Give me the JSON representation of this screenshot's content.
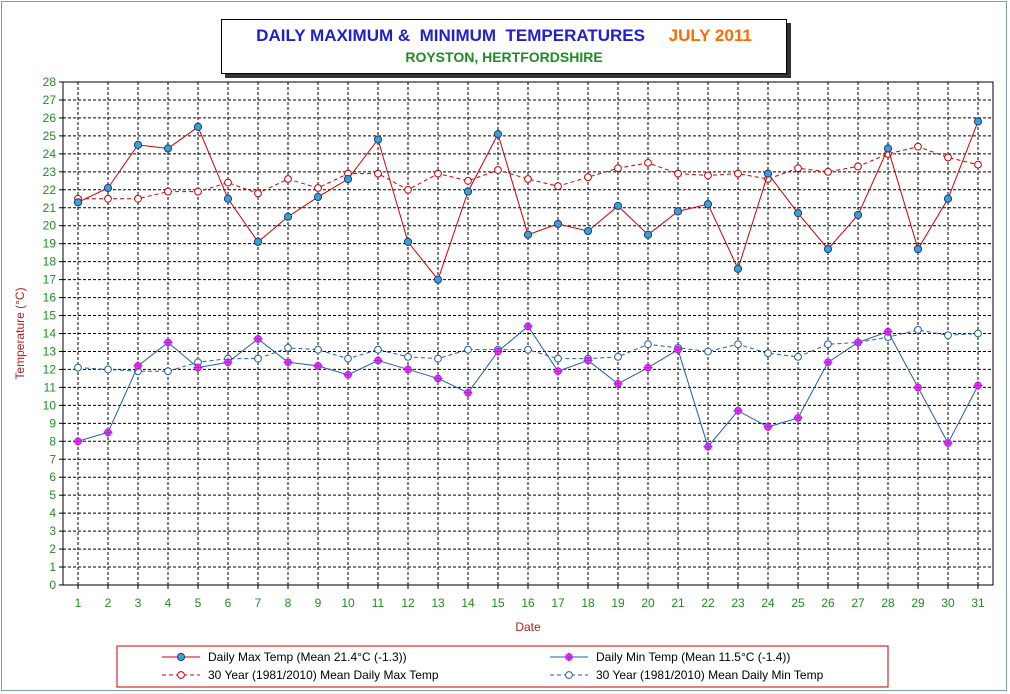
{
  "chart_data": {
    "type": "line",
    "title": "DAILY MAXIMUM &  MINIMUM  TEMPERATURES",
    "title_month": "JULY 2011",
    "subtitle": "ROYSTON, HERTFORDSHIRE",
    "xlabel": "Date",
    "ylabel": "Temperature (°C)",
    "ylim": [
      0,
      28
    ],
    "xlim": [
      0.5,
      31.5
    ],
    "grid": true,
    "x": [
      1,
      2,
      3,
      4,
      5,
      6,
      7,
      8,
      9,
      10,
      11,
      12,
      13,
      14,
      15,
      16,
      17,
      18,
      19,
      20,
      21,
      22,
      23,
      24,
      25,
      26,
      27,
      28,
      29,
      30,
      31
    ],
    "series": [
      {
        "name": "Daily Max Temp (Mean 21.4°C (-1.3))",
        "color": "#cc0000",
        "style": "solid",
        "marker": "filled-dot",
        "values": [
          21.3,
          22.1,
          24.5,
          24.3,
          25.5,
          21.5,
          19.1,
          20.5,
          21.6,
          22.6,
          24.8,
          19.1,
          17.0,
          21.9,
          25.1,
          19.5,
          20.1,
          19.7,
          21.1,
          19.5,
          20.8,
          21.2,
          17.6,
          22.9,
          20.7,
          18.7,
          20.6,
          24.3,
          18.7,
          21.5,
          25.8
        ]
      },
      {
        "name": "Daily Min Temp (Mean 11.5°C (-1.4))",
        "color": "#1f5fa8",
        "style": "solid",
        "marker": "magenta-star",
        "values": [
          8.0,
          8.5,
          12.2,
          13.5,
          12.1,
          12.4,
          13.7,
          12.4,
          12.2,
          11.7,
          12.5,
          12.0,
          11.5,
          10.7,
          13.0,
          14.4,
          11.9,
          12.5,
          11.2,
          12.1,
          13.1,
          7.7,
          9.7,
          8.8,
          9.3,
          12.4,
          13.5,
          14.1,
          11.0,
          7.9,
          11.1
        ]
      },
      {
        "name": "30 Year (1981/2010) Mean Daily Max Temp",
        "color": "#cc0000",
        "style": "dashed",
        "marker": "open-circle",
        "values": [
          21.5,
          21.5,
          21.5,
          21.9,
          21.9,
          22.4,
          21.8,
          22.6,
          22.1,
          22.9,
          22.9,
          22.0,
          22.9,
          22.5,
          23.1,
          22.6,
          22.2,
          22.7,
          23.2,
          23.5,
          22.9,
          22.8,
          22.9,
          22.6,
          23.2,
          23.0,
          23.3,
          24.0,
          24.4,
          23.8,
          23.4
        ]
      },
      {
        "name": "30 Year (1981/2010) Mean Daily Min Temp",
        "color": "#1f5fa8",
        "style": "dashed",
        "marker": "open-circle",
        "values": [
          12.1,
          12.0,
          11.9,
          11.9,
          12.4,
          12.6,
          12.6,
          13.2,
          13.1,
          12.6,
          13.1,
          12.7,
          12.6,
          13.1,
          13.1,
          13.1,
          12.6,
          12.6,
          12.7,
          13.4,
          13.2,
          13.0,
          13.4,
          12.9,
          12.7,
          13.4,
          13.5,
          13.8,
          14.2,
          13.9,
          14.0
        ]
      }
    ],
    "legend_position": "bottom"
  }
}
